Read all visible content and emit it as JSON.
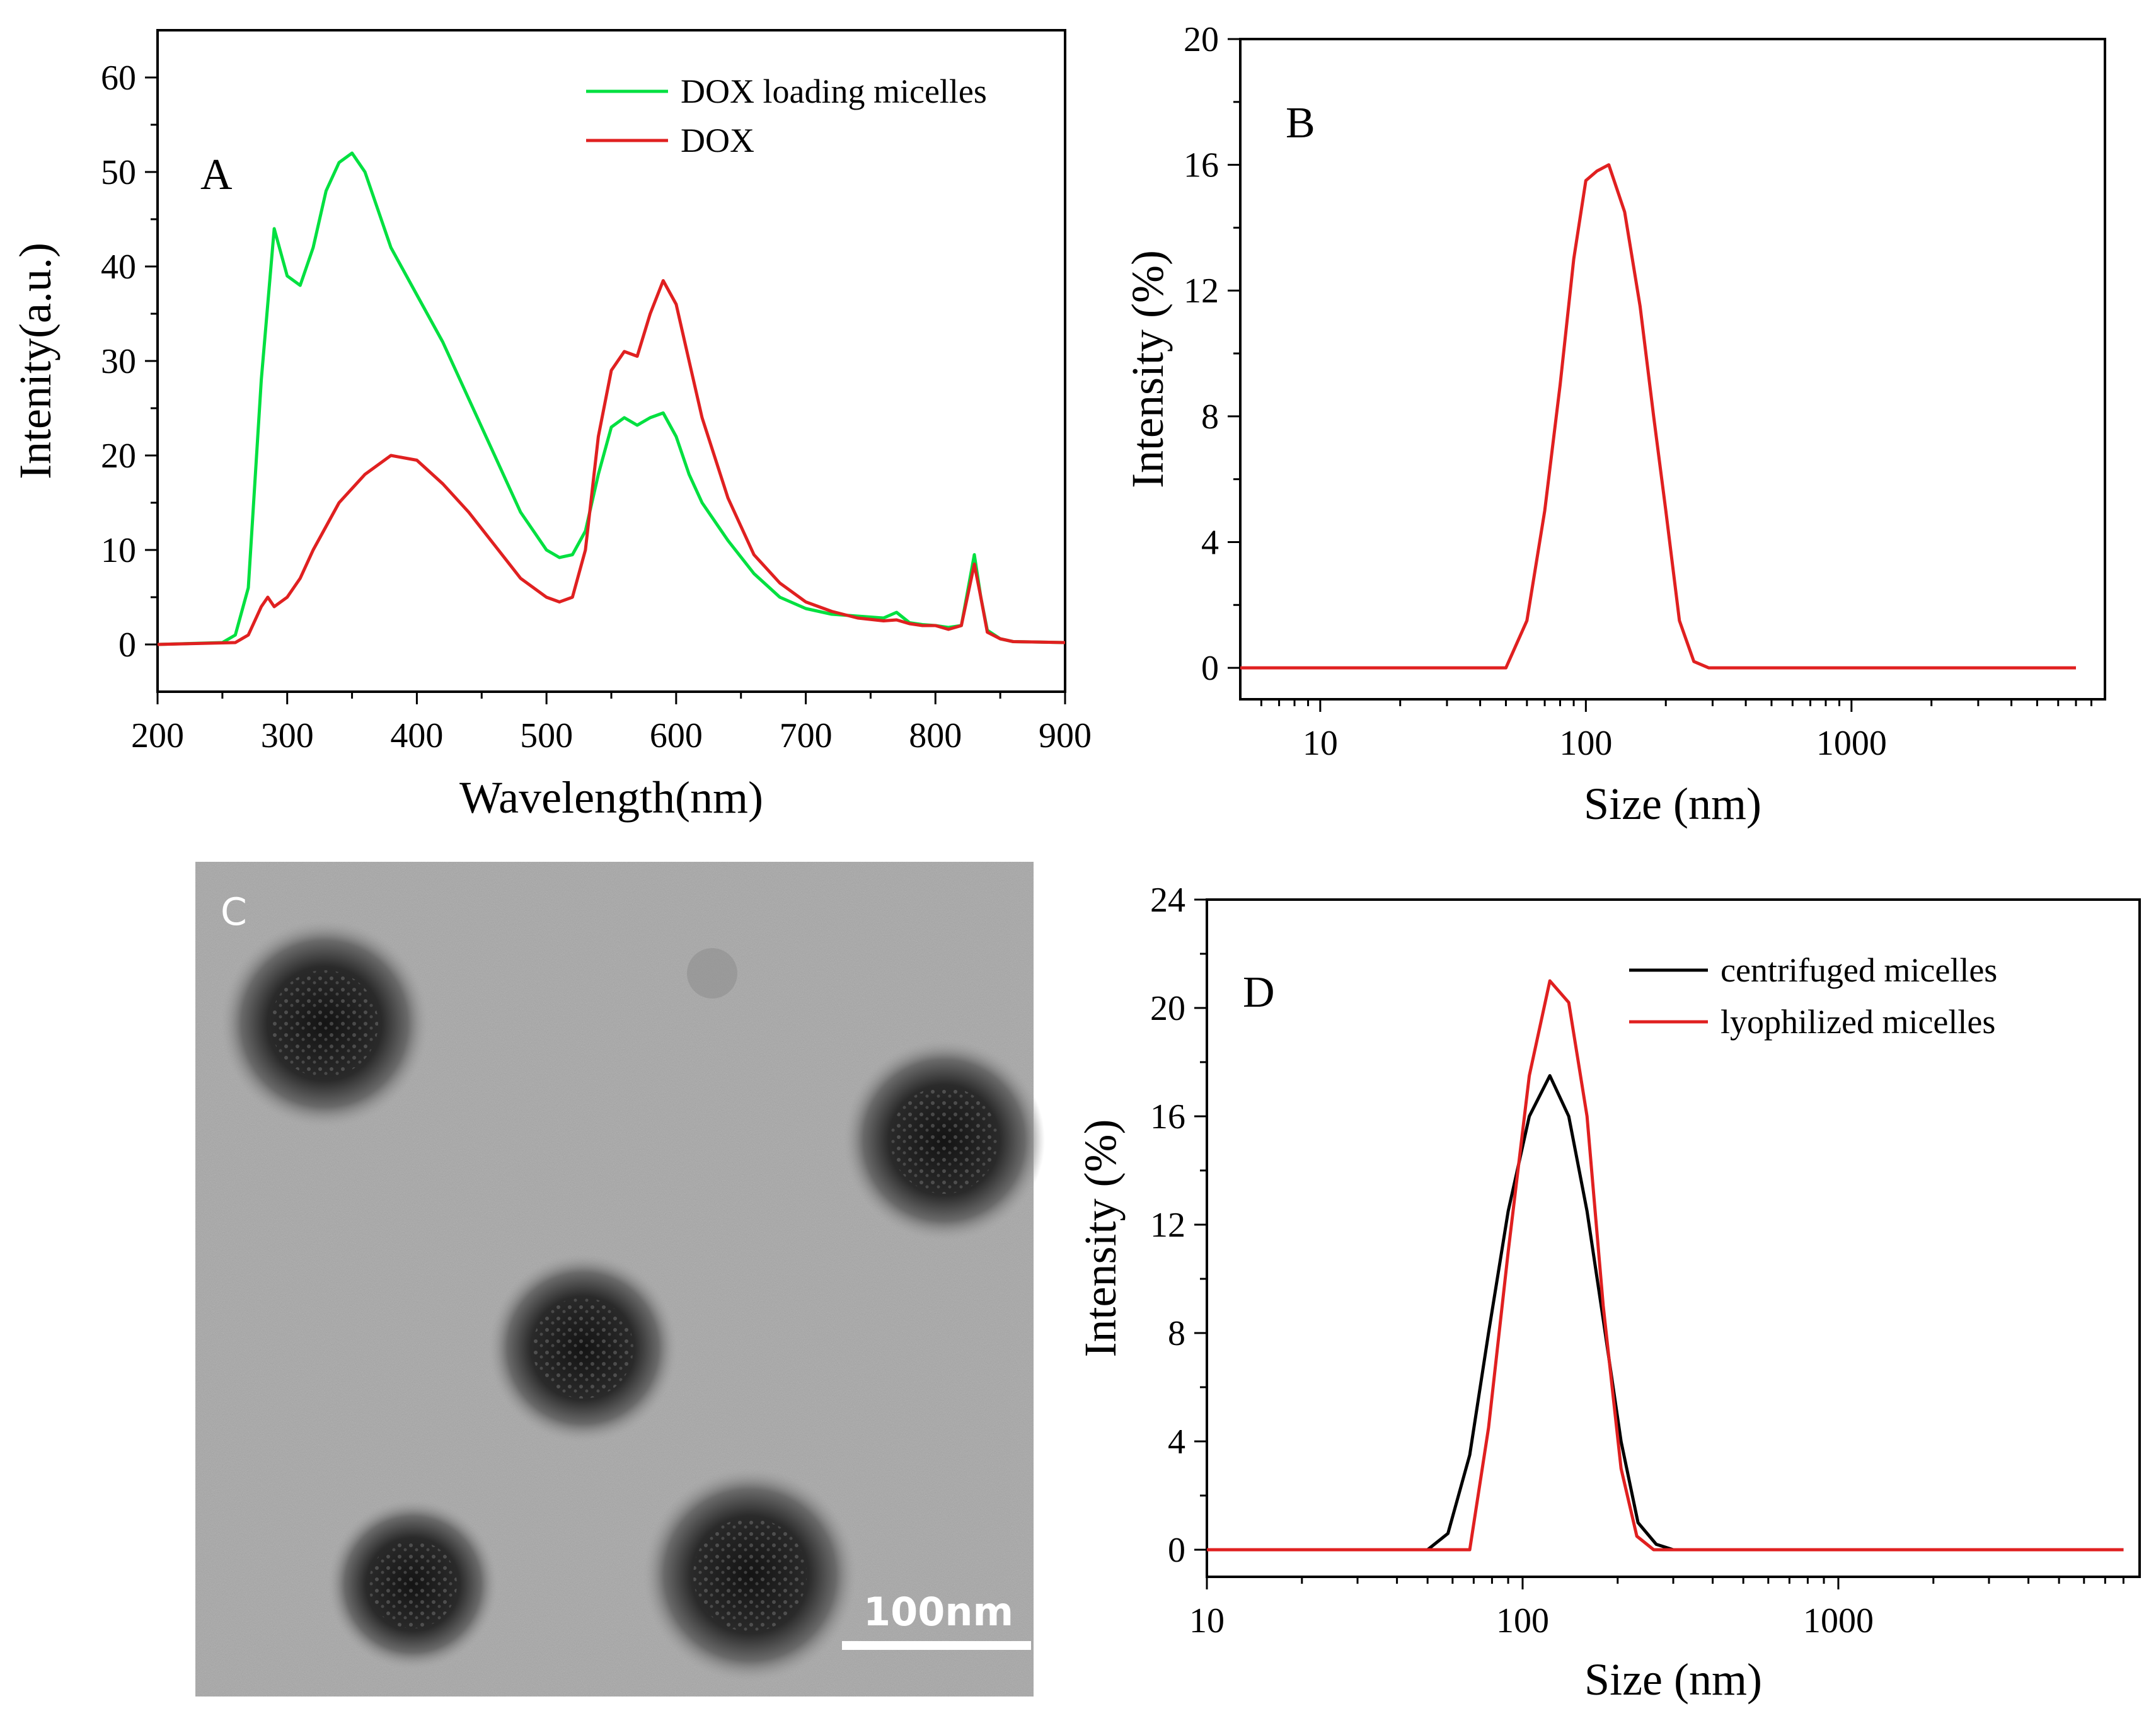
{
  "chart_data": [
    {
      "panel": "A",
      "type": "line",
      "xlabel": "Wavelength(nm)",
      "ylabel": "Intenity(a.u.)",
      "xlim": [
        200,
        900
      ],
      "ylim": [
        -5,
        65
      ],
      "xticks": [
        200,
        300,
        400,
        500,
        600,
        700,
        800,
        900
      ],
      "yticks": [
        0,
        10,
        20,
        30,
        40,
        50,
        60
      ],
      "legend": "top-right",
      "series": [
        {
          "name": "DOX loading micelles",
          "color": "#00e040",
          "x": [
            200,
            250,
            260,
            270,
            280,
            290,
            300,
            310,
            320,
            330,
            340,
            350,
            360,
            370,
            380,
            400,
            420,
            440,
            460,
            470,
            480,
            490,
            500,
            510,
            520,
            530,
            540,
            550,
            560,
            570,
            580,
            590,
            600,
            610,
            620,
            640,
            660,
            680,
            700,
            720,
            740,
            760,
            770,
            780,
            790,
            800,
            810,
            820,
            830,
            835,
            840,
            850,
            860,
            900
          ],
          "y": [
            0,
            0.2,
            1,
            6,
            28,
            44,
            39,
            38,
            42,
            48,
            51,
            52,
            50,
            46,
            42,
            37,
            32,
            26,
            20,
            17,
            14,
            12,
            10,
            9.2,
            9.5,
            12,
            18,
            23,
            24,
            23.2,
            24,
            24.5,
            22,
            18,
            15,
            11,
            7.5,
            5,
            3.8,
            3.2,
            3,
            2.8,
            3.4,
            2.3,
            2.1,
            2,
            1.8,
            2,
            9.5,
            5,
            1.5,
            0.6,
            0.3,
            0.2
          ]
        },
        {
          "name": "DOX",
          "color": "#e02020",
          "x": [
            200,
            260,
            270,
            280,
            285,
            290,
            300,
            310,
            320,
            340,
            360,
            380,
            400,
            420,
            440,
            460,
            480,
            500,
            510,
            520,
            530,
            540,
            550,
            560,
            570,
            580,
            590,
            600,
            610,
            620,
            640,
            660,
            680,
            700,
            720,
            740,
            760,
            770,
            780,
            790,
            800,
            810,
            820,
            830,
            835,
            840,
            850,
            860,
            900
          ],
          "y": [
            0,
            0.2,
            1,
            4,
            5,
            4,
            5,
            7,
            10,
            15,
            18,
            20,
            19.5,
            17,
            14,
            10.5,
            7,
            5,
            4.5,
            5,
            10,
            22,
            29,
            31,
            30.5,
            35,
            38.5,
            36,
            30,
            24,
            15.5,
            9.5,
            6.5,
            4.5,
            3.5,
            2.8,
            2.5,
            2.6,
            2.2,
            2,
            2,
            1.6,
            2,
            8.5,
            5,
            1.3,
            0.6,
            0.3,
            0.2
          ]
        }
      ]
    },
    {
      "panel": "B",
      "type": "line",
      "xlabel": "Size (nm)",
      "ylabel": "Intensity (%)",
      "xscale": "log",
      "xlim": [
        5,
        9000
      ],
      "ylim": [
        -1,
        20
      ],
      "xticks": [
        10,
        100,
        1000
      ],
      "yticks": [
        0,
        4,
        8,
        12,
        16,
        20
      ],
      "series": [
        {
          "color": "#e02020",
          "x": [
            5,
            50,
            60,
            70,
            80,
            90,
            100,
            110,
            122,
            140,
            160,
            180,
            200,
            225,
            255,
            290,
            330,
            400,
            7000
          ],
          "y": [
            0,
            0,
            1.5,
            5,
            9,
            13,
            15.5,
            15.8,
            16,
            14.5,
            11.5,
            8,
            5,
            1.5,
            0.2,
            0,
            0,
            0,
            0
          ]
        }
      ]
    },
    {
      "panel": "D",
      "type": "line",
      "xlabel": "Size (nm)",
      "ylabel": "Intensity (%)",
      "xscale": "log",
      "xlim": [
        10,
        9000
      ],
      "ylim": [
        -1,
        24
      ],
      "xticks": [
        10,
        100,
        1000
      ],
      "yticks": [
        0,
        4,
        8,
        12,
        16,
        20,
        24
      ],
      "legend": "top-right",
      "series": [
        {
          "name": "centrifuged  micelles",
          "color": "#000000",
          "x": [
            10,
            50,
            58,
            68,
            78,
            90,
            105,
            122,
            140,
            160,
            180,
            205,
            232,
            265,
            300,
            340,
            8000
          ],
          "y": [
            0,
            0,
            0.6,
            3.5,
            8,
            12.5,
            16,
            17.5,
            16,
            12.5,
            8.5,
            4,
            1,
            0.2,
            0,
            0,
            0
          ]
        },
        {
          "name": "lyophilized  micelles",
          "color": "#e02020",
          "x": [
            10,
            68,
            78,
            90,
            105,
            122,
            140,
            160,
            180,
            205,
            230,
            260,
            8000
          ],
          "y": [
            0,
            0,
            4.5,
            11,
            17.5,
            21,
            20.2,
            16,
            9,
            3,
            0.5,
            0,
            0
          ]
        }
      ]
    }
  ],
  "panel_c": {
    "letter": "C",
    "scale_bar_label": "100nm"
  },
  "panel_letters": {
    "a": "A",
    "b": "B",
    "d": "D"
  }
}
